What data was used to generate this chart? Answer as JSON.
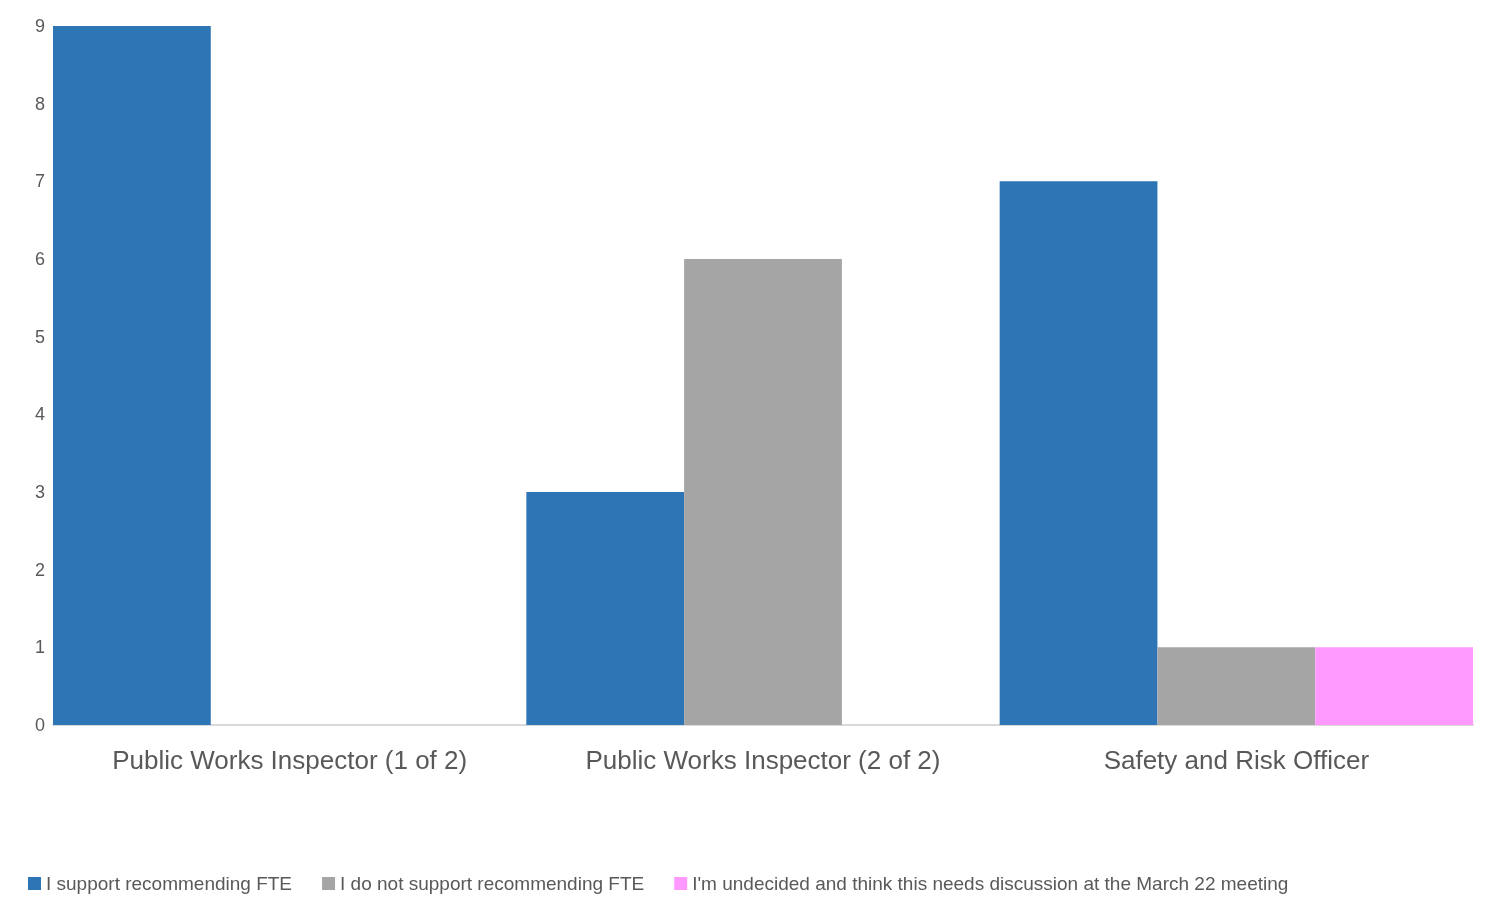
{
  "chart_data": {
    "type": "bar",
    "categories": [
      "Public Works Inspector (1 of 2)",
      "Public Works Inspector (2 of 2)",
      "Safety and Risk Officer"
    ],
    "series": [
      {
        "name": "I support recommending FTE",
        "color": "#2e75b6",
        "values": [
          9,
          3,
          7
        ]
      },
      {
        "name": "I do not support recommending FTE",
        "color": "#a5a5a5",
        "values": [
          0,
          6,
          1
        ]
      },
      {
        "name": "I'm undecided and think this needs discussion at the March 22 meeting",
        "color": "#ff99ff",
        "values": [
          0,
          0,
          1
        ]
      }
    ],
    "ylim": [
      0,
      9
    ],
    "yticks": [
      0,
      1,
      2,
      3,
      4,
      5,
      6,
      7,
      8,
      9
    ],
    "grid": false,
    "legend": "bottom left"
  }
}
